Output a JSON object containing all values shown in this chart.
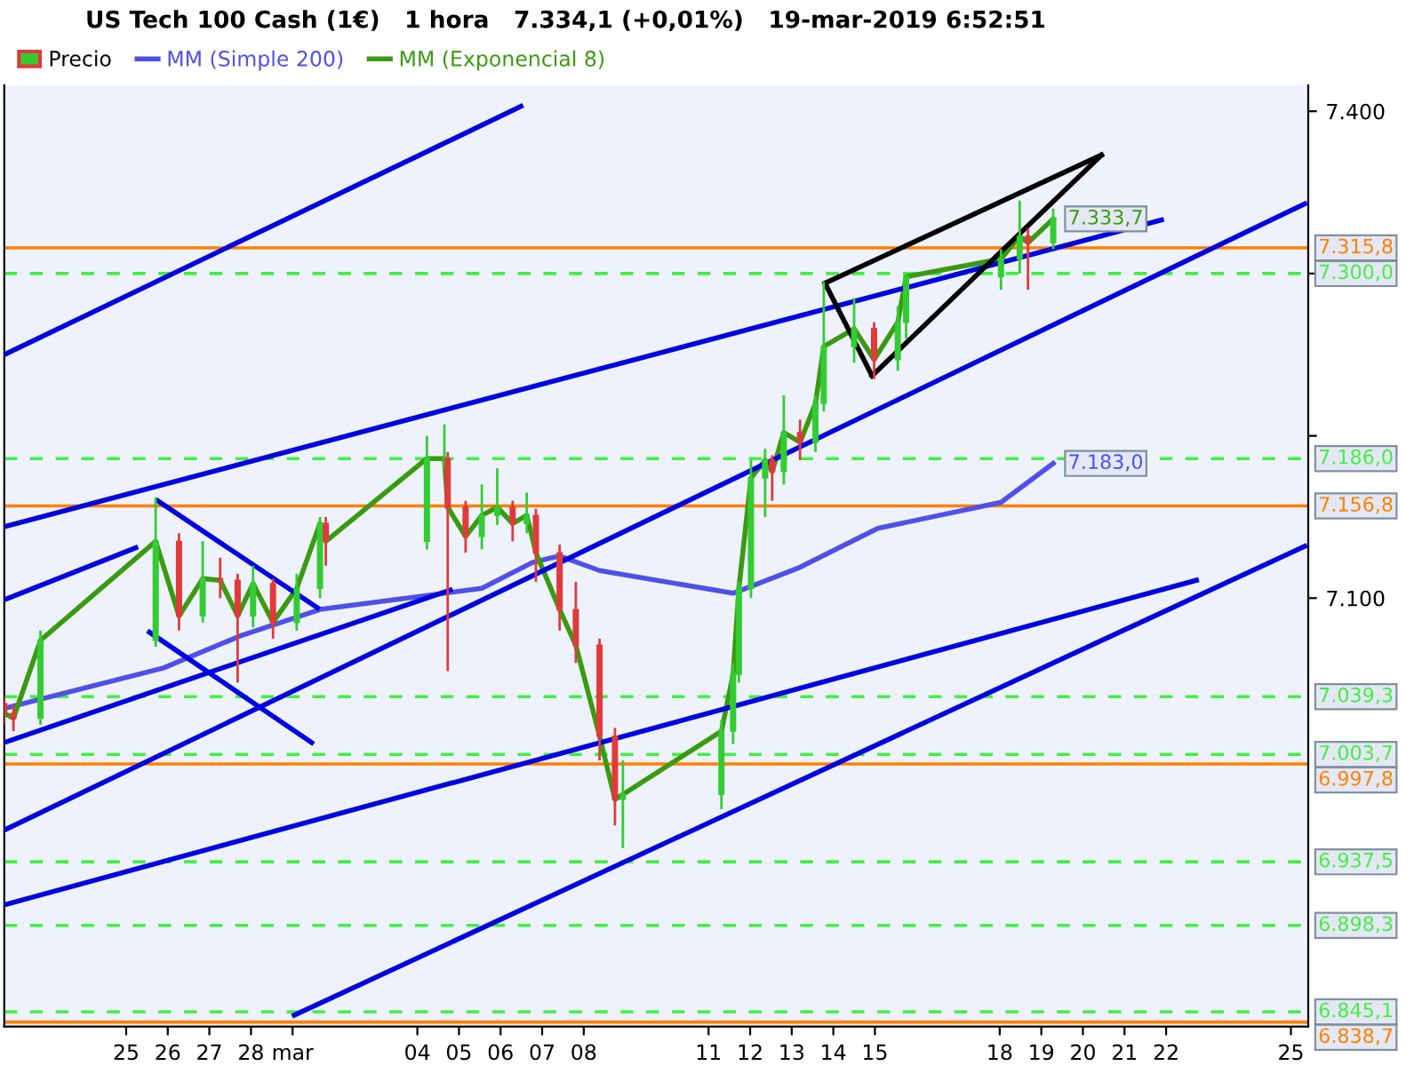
{
  "chart_data": {
    "type": "candlestick",
    "title": "US Tech 100 Cash (1€)   1 hora   7.334,1 (+0,01%)   19-mar-2019 6:52:51",
    "legend": "top left",
    "xlim": [
      "2019-02-22T01:40",
      "2019-03-25T10:00"
    ],
    "ylim": [
      6836,
      7416
    ],
    "xticks": [
      {
        "value": "2019-02-25",
        "label": "25"
      },
      {
        "value": "2019-02-26",
        "label": "26"
      },
      {
        "value": "2019-02-27",
        "label": "27"
      },
      {
        "value": "2019-02-28",
        "label": "28"
      },
      {
        "value": "2019-03-01",
        "label": "mar"
      },
      {
        "value": "2019-03-04",
        "label": "04"
      },
      {
        "value": "2019-03-05",
        "label": "05"
      },
      {
        "value": "2019-03-06",
        "label": "06"
      },
      {
        "value": "2019-03-07",
        "label": "07"
      },
      {
        "value": "2019-03-08",
        "label": "08"
      },
      {
        "value": "2019-03-11",
        "label": "11"
      },
      {
        "value": "2019-03-12",
        "label": "12"
      },
      {
        "value": "2019-03-13",
        "label": "13"
      },
      {
        "value": "2019-03-14",
        "label": "14"
      },
      {
        "value": "2019-03-15",
        "label": "15"
      },
      {
        "value": "2019-03-18",
        "label": "18"
      },
      {
        "value": "2019-03-19",
        "label": "19"
      },
      {
        "value": "2019-03-20",
        "label": "20"
      },
      {
        "value": "2019-03-21",
        "label": "21"
      },
      {
        "value": "2019-03-22",
        "label": "22"
      },
      {
        "value": "2019-03-25",
        "label": "25"
      }
    ],
    "yticks": [
      {
        "value": 7400,
        "label": "7.400"
      },
      {
        "value": 7300,
        "label": null
      },
      {
        "value": 7200,
        "label": null
      },
      {
        "value": 7100,
        "label": "7.100"
      }
    ],
    "series": [
      {
        "name": "Precio",
        "x": [
          "2019-02-22T01:40",
          "2019-02-22T06:58",
          "2019-02-22T22:34",
          "2019-02-25T17:02",
          "2019-02-26T06:29",
          "2019-02-26T20:10",
          "2019-02-27T06:14",
          "2019-02-27T16:19",
          "2019-02-28T01:12",
          "2019-02-28T12:43",
          "2019-03-01T02:24",
          "2019-03-01T15:50",
          "2019-03-01T19:12",
          "2019-03-04T05:31",
          "2019-03-04T15:36",
          "2019-03-04T17:31",
          "2019-03-05T03:50",
          "2019-03-05T13:12",
          "2019-03-05T22:05",
          "2019-03-06T06:58",
          "2019-03-06T15:07",
          "2019-03-06T20:24",
          "2019-03-07T10:05",
          "2019-03-07T19:26",
          "2019-03-08T09:07",
          "2019-03-08T18:00",
          "2019-03-08T22:34",
          "2019-03-11T07:26",
          "2019-03-11T14:10",
          "2019-03-11T17:31",
          "2019-03-12T00:29",
          "2019-03-12T08:38",
          "2019-03-12T12:43",
          "2019-03-12T19:26",
          "2019-03-13T04:48",
          "2019-03-13T13:41",
          "2019-03-13T18:29",
          "2019-03-14T12:00",
          "2019-03-14T23:31",
          "2019-03-15T13:12",
          "2019-03-15T18:00",
          "2019-03-18T00:43",
          "2019-03-18T11:31",
          "2019-03-18T16:19",
          "2019-03-19T06:52"
        ],
        "ohlc": [
          [
            7035,
            7040,
            7022,
            7029
          ],
          [
            7029,
            7034,
            7018,
            7026
          ],
          [
            7026,
            7080,
            7022,
            7074
          ],
          [
            7074,
            7162,
            7070,
            7135
          ],
          [
            7135,
            7140,
            7080,
            7089
          ],
          [
            7089,
            7135,
            7085,
            7112
          ],
          [
            7112,
            7125,
            7100,
            7111
          ],
          [
            7111,
            7115,
            7048,
            7089
          ],
          [
            7089,
            7120,
            7082,
            7109
          ],
          [
            7109,
            7112,
            7075,
            7085
          ],
          [
            7085,
            7115,
            7080,
            7106
          ],
          [
            7106,
            7150,
            7100,
            7146
          ],
          [
            7146,
            7150,
            7120,
            7135
          ],
          [
            7135,
            7200,
            7130,
            7186
          ],
          [
            7186,
            7207,
            7180,
            7186
          ],
          [
            7186,
            7190,
            7055,
            7156
          ],
          [
            7156,
            7160,
            7128,
            7138
          ],
          [
            7138,
            7170,
            7130,
            7151
          ],
          [
            7151,
            7180,
            7145,
            7156
          ],
          [
            7156,
            7160,
            7135,
            7146
          ],
          [
            7146,
            7165,
            7140,
            7151
          ],
          [
            7151,
            7155,
            7110,
            7128
          ],
          [
            7128,
            7133,
            7080,
            7093
          ],
          [
            7093,
            7110,
            7060,
            7071
          ],
          [
            7071,
            7075,
            7000,
            7015
          ],
          [
            7015,
            7020,
            6960,
            6976
          ],
          [
            6976,
            7000,
            6946,
            6979
          ],
          [
            6979,
            7025,
            6970,
            7018
          ],
          [
            7018,
            7060,
            7010,
            7053
          ],
          [
            7053,
            7110,
            7048,
            7106
          ],
          [
            7106,
            7185,
            7100,
            7174
          ],
          [
            7174,
            7192,
            7150,
            7185
          ],
          [
            7185,
            7188,
            7160,
            7178
          ],
          [
            7178,
            7225,
            7170,
            7202
          ],
          [
            7202,
            7210,
            7185,
            7196
          ],
          [
            7196,
            7225,
            7190,
            7220
          ],
          [
            7220,
            7295,
            7215,
            7255
          ],
          [
            7255,
            7285,
            7245,
            7266
          ],
          [
            7266,
            7270,
            7235,
            7247
          ],
          [
            7247,
            7280,
            7240,
            7270
          ],
          [
            7270,
            7300,
            7260,
            7298
          ],
          [
            7298,
            7315,
            7290,
            7309
          ],
          [
            7309,
            7345,
            7300,
            7323
          ],
          [
            7323,
            7328,
            7290,
            7319
          ],
          [
            7319,
            7340,
            7315,
            7334
          ]
        ]
      },
      {
        "name": "MM (Simple 200)",
        "type": "line",
        "color": "#5050e8",
        "x": [
          "2019-02-22T01:40",
          "2019-02-25T21:36",
          "2019-02-27T18:29",
          "2019-03-01T15:50",
          "2019-03-05T13:12",
          "2019-03-06T18:29",
          "2019-03-07T10:05",
          "2019-03-08T09:07",
          "2019-03-11T14:10",
          "2019-03-13T04:48",
          "2019-03-15T01:41",
          "2019-03-18T00:43",
          "2019-03-19T06:52"
        ],
        "values": [
          7032,
          7057,
          7077,
          7093,
          7106,
          7122,
          7126,
          7117,
          7103,
          7119,
          7143,
          7159,
          7183
        ],
        "value_labels": [
          null,
          null,
          null,
          null,
          null,
          null,
          null,
          null,
          null,
          null,
          null,
          null,
          "7.183,0"
        ]
      },
      {
        "name": "MM (Exponencial 8)",
        "type": "line",
        "color": "#3a9a10",
        "x": [
          "2019-02-22T01:40",
          "2019-02-22T06:58",
          "2019-02-22T22:34",
          "2019-02-25T17:02",
          "2019-02-26T06:29",
          "2019-02-26T20:10",
          "2019-02-27T06:14",
          "2019-02-27T16:19",
          "2019-02-28T01:12",
          "2019-02-28T12:43",
          "2019-03-01T02:24",
          "2019-03-01T15:50",
          "2019-03-01T19:12",
          "2019-03-04T05:31",
          "2019-03-04T15:36",
          "2019-03-04T17:31",
          "2019-03-05T03:50",
          "2019-03-05T13:12",
          "2019-03-05T22:05",
          "2019-03-06T06:58",
          "2019-03-06T15:07",
          "2019-03-06T20:24",
          "2019-03-07T10:05",
          "2019-03-07T19:26",
          "2019-03-08T09:07",
          "2019-03-08T18:00",
          "2019-03-08T22:34",
          "2019-03-11T07:26",
          "2019-03-11T14:10",
          "2019-03-11T17:31",
          "2019-03-12T00:29",
          "2019-03-12T08:38",
          "2019-03-12T12:43",
          "2019-03-12T19:26",
          "2019-03-13T04:48",
          "2019-03-13T13:41",
          "2019-03-13T18:29",
          "2019-03-14T12:00",
          "2019-03-14T23:31",
          "2019-03-15T13:12",
          "2019-03-15T18:00",
          "2019-03-18T00:43",
          "2019-03-18T11:31",
          "2019-03-18T16:19",
          "2019-03-19T06:52"
        ],
        "values": [
          7029,
          7026,
          7074,
          7135,
          7089,
          7112,
          7111,
          7089,
          7109,
          7085,
          7106,
          7146,
          7135,
          7186,
          7186,
          7156,
          7138,
          7151,
          7156,
          7146,
          7151,
          7128,
          7093,
          7071,
          7015,
          6976,
          6979,
          7018,
          7053,
          7106,
          7174,
          7185,
          7178,
          7202,
          7196,
          7220,
          7255,
          7266,
          7247,
          7270,
          7298,
          7309,
          7323,
          7319,
          7333.7
        ],
        "value_labels": [
          null,
          null,
          null,
          null,
          null,
          null,
          null,
          null,
          null,
          null,
          null,
          null,
          null,
          null,
          null,
          null,
          null,
          null,
          null,
          null,
          null,
          null,
          null,
          null,
          null,
          null,
          null,
          null,
          null,
          null,
          null,
          null,
          null,
          null,
          null,
          null,
          null,
          null,
          null,
          null,
          null,
          null,
          null,
          null,
          "7.333,7"
        ]
      },
      {
        "type": "line",
        "color": "#0000e0",
        "x": [
          "2019-02-22T01:40",
          "2019-03-06T11:46"
        ],
        "values": [
          7250,
          7403
        ]
      },
      {
        "type": "line",
        "color": "#0000e0",
        "x": [
          "2019-02-22T01:40",
          "2019-03-21T21:20"
        ],
        "values": [
          7144,
          7333
        ]
      },
      {
        "type": "line",
        "color": "#0000e0",
        "x": [
          "2019-02-22T01:40",
          "2019-02-25T05:31"
        ],
        "values": [
          7099,
          7131
        ]
      },
      {
        "type": "line",
        "color": "#0000e0",
        "x": [
          "2019-02-25T18:14",
          "2019-03-01T14:24"
        ],
        "values": [
          7160,
          7094
        ]
      },
      {
        "type": "line",
        "color": "#0000e0",
        "x": [
          "2019-02-25T13:26",
          "2019-03-01T11:02"
        ],
        "values": [
          7079,
          7011
        ]
      },
      {
        "type": "line",
        "color": "#0000e0",
        "x": [
          "2019-02-22T01:40",
          "2019-03-04T18:58"
        ],
        "values": [
          7011,
          7105
        ]
      },
      {
        "type": "line",
        "color": "#0000e0",
        "x": [
          "2019-02-22T01:40",
          "2019-03-25T08:00"
        ],
        "values": [
          6957,
          7343
        ]
      },
      {
        "type": "line",
        "color": "#0000e0",
        "x": [
          "2019-02-22T01:40",
          "2019-03-22T17:30"
        ],
        "values": [
          6911,
          7111
        ]
      },
      {
        "type": "line",
        "color": "#0000e0",
        "x": [
          "2019-03-01T00:58",
          "2019-03-25T08:00"
        ],
        "values": [
          6843,
          7132
        ]
      },
      {
        "type": "line",
        "color": "#000000",
        "x": [
          "2019-03-13T19:12",
          "2019-03-20T10:40"
        ],
        "values": [
          7294,
          7373
        ]
      },
      {
        "type": "line",
        "color": "#000000",
        "x": [
          "2019-03-14T22:19",
          "2019-03-20T10:40"
        ],
        "values": [
          7237,
          7373
        ]
      },
      {
        "type": "line",
        "color": "#000000",
        "x": [
          "2019-03-13T19:12",
          "2019-03-14T22:19"
        ],
        "values": [
          7294,
          7237
        ]
      }
    ],
    "ref_lines": [
      {
        "axis": "y",
        "value": 7315.8,
        "label": "7.315,8",
        "color": "#ff8000",
        "line_style": "solid"
      },
      {
        "axis": "y",
        "value": 7300.0,
        "label": "7.300,0",
        "color": "#44ee44",
        "line_style": "dashed"
      },
      {
        "axis": "y",
        "value": 7186.0,
        "label": "7.186,0",
        "color": "#44ee44",
        "line_style": "dashed"
      },
      {
        "axis": "y",
        "value": 7156.8,
        "label": "7.156,8",
        "color": "#ff8000",
        "line_style": "solid"
      },
      {
        "axis": "y",
        "value": 7039.3,
        "label": "7.039,3",
        "color": "#44ee44",
        "line_style": "dashed"
      },
      {
        "axis": "y",
        "value": 7003.7,
        "label": "7.003,7",
        "color": "#44ee44",
        "line_style": "dashed"
      },
      {
        "axis": "y",
        "value": 6997.8,
        "label": "6.997,8",
        "color": "#ff8000",
        "line_style": "solid"
      },
      {
        "axis": "y",
        "value": 6937.5,
        "label": "6.937,5",
        "color": "#44ee44",
        "line_style": "dashed"
      },
      {
        "axis": "y",
        "value": 6898.3,
        "label": "6.898,3",
        "color": "#44ee44",
        "line_style": "dashed"
      },
      {
        "axis": "y",
        "value": 6845.1,
        "label": "6.845,1",
        "color": "#44ee44",
        "line_style": "dashed"
      },
      {
        "axis": "y",
        "value": 6838.7,
        "label": "6.838,7",
        "color": "#ff8000",
        "line_style": "solid"
      }
    ]
  }
}
